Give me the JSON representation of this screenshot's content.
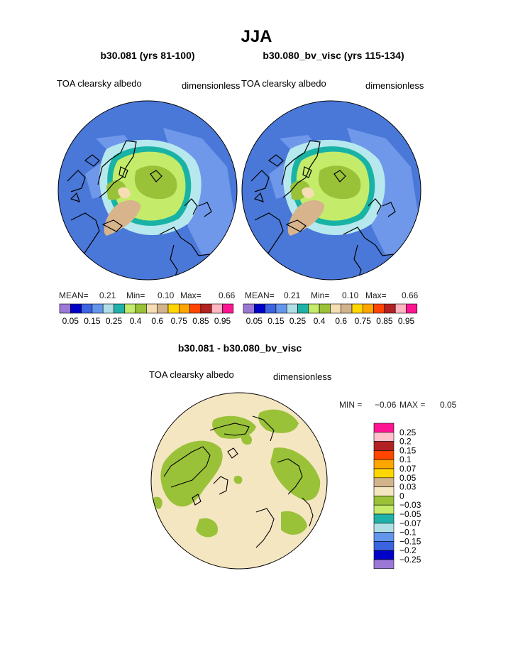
{
  "page_title": "JJA",
  "colors": {
    "ocean": "#4a78d8",
    "ice_light": "#b6e8ee",
    "ice_mid": "#19b3a5",
    "land_green": "#9ac239",
    "land_lime": "#c4ec6a",
    "tan": "#d7b48c",
    "diff_base": "#f5e6c2",
    "coast": "#000000"
  },
  "chart_data": [
    {
      "type": "heatmap",
      "projection": "polar stereographic (north pole)",
      "title": "b30.081 (yrs 81-100)",
      "left_label": "TOA clearsky albedo",
      "right_label": "dimensionless",
      "stats": {
        "mean_label": "MEAN=",
        "mean": "0.21",
        "min_label": "Min=",
        "min": "0.10",
        "max_label": "Max=",
        "max": "0.66"
      },
      "colorbar": {
        "orientation": "horizontal",
        "colors": [
          "#9b78d6",
          "#0000c8",
          "#3c64e0",
          "#6495ed",
          "#b0dfe6",
          "#20b2aa",
          "#c4ec6a",
          "#9ac239",
          "#f5deb3",
          "#d2b48c",
          "#ffd700",
          "#ffa500",
          "#ff4500",
          "#b22222",
          "#ffb6c1",
          "#ff1493"
        ],
        "tick_labels": [
          "0.05",
          "0.15",
          "0.25",
          "0.4",
          "0.6",
          "0.75",
          "0.85",
          "0.95"
        ]
      }
    },
    {
      "type": "heatmap",
      "projection": "polar stereographic (north pole)",
      "title": "b30.080_bv_visc (yrs 115-134)",
      "left_label": "TOA clearsky albedo",
      "right_label": "dimensionless",
      "stats": {
        "mean_label": "MEAN=",
        "mean": "0.21",
        "min_label": "Min=",
        "min": "0.10",
        "max_label": "Max=",
        "max": "0.66"
      },
      "colorbar": {
        "orientation": "horizontal",
        "colors": [
          "#9b78d6",
          "#0000c8",
          "#3c64e0",
          "#6495ed",
          "#b0dfe6",
          "#20b2aa",
          "#c4ec6a",
          "#9ac239",
          "#f5deb3",
          "#d2b48c",
          "#ffd700",
          "#ffa500",
          "#ff4500",
          "#b22222",
          "#ffb6c1",
          "#ff1493"
        ],
        "tick_labels": [
          "0.05",
          "0.15",
          "0.25",
          "0.4",
          "0.6",
          "0.75",
          "0.85",
          "0.95"
        ]
      }
    },
    {
      "type": "heatmap",
      "projection": "polar stereographic (north pole)",
      "title": "b30.081 - b30.080_bv_visc",
      "left_label": "TOA clearsky albedo",
      "right_label": "dimensionless",
      "stats": {
        "min_label": "MIN =",
        "min": "−0.06",
        "max_label": "MAX =",
        "max": "0.05"
      },
      "colorbar": {
        "orientation": "vertical",
        "colors": [
          "#ff1493",
          "#ffc0cb",
          "#b22222",
          "#ff4500",
          "#ffa500",
          "#ffd700",
          "#d2b48c",
          "#f5e6c2",
          "#9ac239",
          "#c4ec6a",
          "#20b2aa",
          "#b0dfe6",
          "#6495ed",
          "#3c64e0",
          "#0000c8",
          "#9b78d6"
        ],
        "tick_labels": [
          "0.25",
          "0.2",
          "0.15",
          "0.1",
          "0.07",
          "0.05",
          "0.03",
          "0",
          "−0.03",
          "−0.05",
          "−0.07",
          "−0.1",
          "−0.15",
          "−0.2",
          "−0.25"
        ]
      }
    }
  ]
}
